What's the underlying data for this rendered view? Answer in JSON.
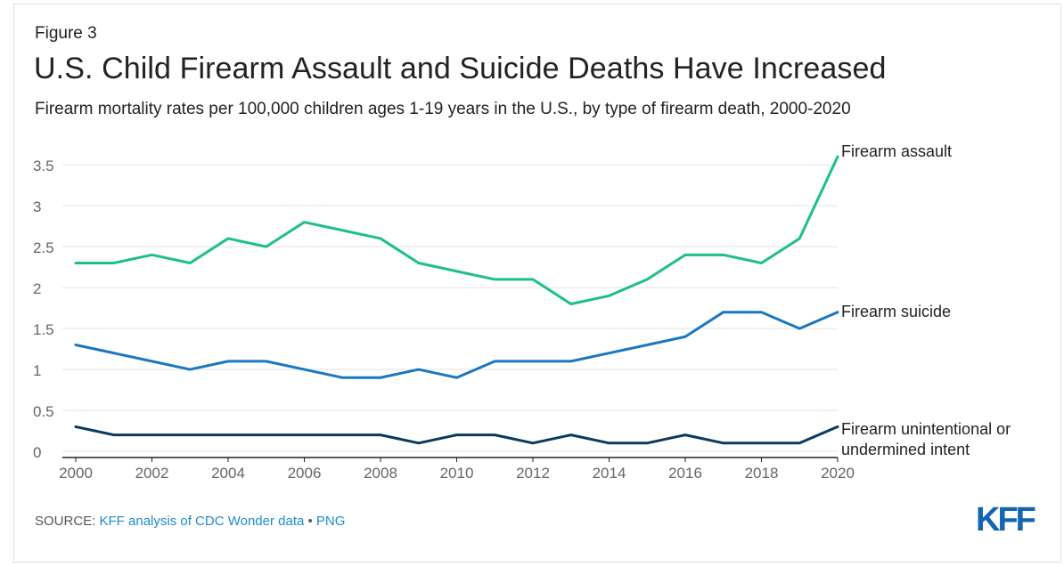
{
  "figure_label": "Figure 3",
  "title": "U.S. Child Firearm Assault and Suicide Deaths Have Increased",
  "subtitle": "Firearm mortality rates per 100,000 children ages 1-19 years in the U.S., by type of firearm death, 2000-2020",
  "source": {
    "prefix": "SOURCE: ",
    "link_text": "KFF analysis of CDC Wonder data",
    "separator": " • ",
    "format_link": "PNG"
  },
  "logo_text": "KFF",
  "colors": {
    "assault": "#1dbf8c",
    "suicide": "#1a78c2",
    "unintentional": "#0b3a5e",
    "grid": "#e3e3e3",
    "axis_text": "#666666",
    "link": "#1f8bcf",
    "logo": "#1265b0"
  },
  "chart_data": {
    "type": "line",
    "x": [
      2000,
      2001,
      2002,
      2003,
      2004,
      2005,
      2006,
      2007,
      2008,
      2009,
      2010,
      2011,
      2012,
      2013,
      2014,
      2015,
      2016,
      2017,
      2018,
      2019,
      2020
    ],
    "x_ticks": [
      "2000",
      "2002",
      "2004",
      "2006",
      "2008",
      "2010",
      "2012",
      "2014",
      "2016",
      "2018",
      "2020"
    ],
    "y_ticks": [
      "0",
      "0.5",
      "1",
      "1.5",
      "2",
      "2.5",
      "3",
      "3.5"
    ],
    "ylim": [
      0,
      3.6
    ],
    "xlim": [
      2000,
      2020
    ],
    "grid": true,
    "series": [
      {
        "name": "Firearm assault",
        "color_key": "assault",
        "values": [
          2.3,
          2.3,
          2.4,
          2.3,
          2.6,
          2.5,
          2.8,
          2.7,
          2.6,
          2.3,
          2.2,
          2.1,
          2.1,
          1.8,
          1.9,
          2.1,
          2.4,
          2.4,
          2.3,
          2.6,
          3.6
        ]
      },
      {
        "name": "Firearm suicide",
        "color_key": "suicide",
        "values": [
          1.3,
          1.2,
          1.1,
          1.0,
          1.1,
          1.1,
          1.0,
          0.9,
          0.9,
          1.0,
          0.9,
          1.1,
          1.1,
          1.1,
          1.2,
          1.3,
          1.4,
          1.7,
          1.7,
          1.5,
          1.7
        ]
      },
      {
        "name": "Firearm unintentional or undermined intent",
        "label_lines": [
          "Firearm unintentional or",
          "undermined intent"
        ],
        "color_key": "unintentional",
        "values": [
          0.3,
          0.2,
          0.2,
          0.2,
          0.2,
          0.2,
          0.2,
          0.2,
          0.2,
          0.1,
          0.2,
          0.2,
          0.1,
          0.2,
          0.1,
          0.1,
          0.2,
          0.1,
          0.1,
          0.1,
          0.3
        ]
      }
    ]
  }
}
